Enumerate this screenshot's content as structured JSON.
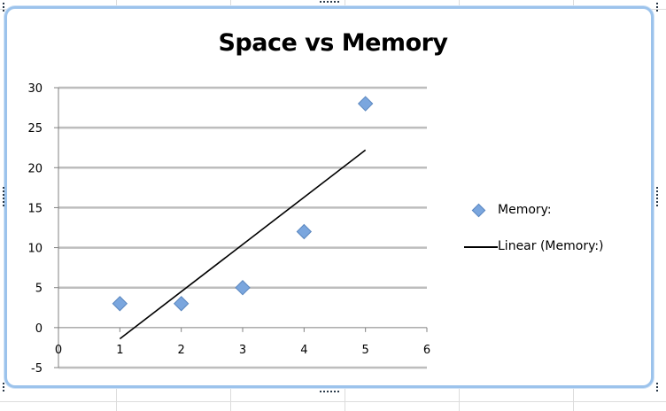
{
  "chart_data": {
    "type": "scatter",
    "title": "Space vs Memory",
    "xlabel": "",
    "ylabel": "",
    "xlim": [
      0,
      6
    ],
    "ylim": [
      -5,
      30
    ],
    "x_ticks": [
      "0",
      "1",
      "2",
      "3",
      "4",
      "5",
      "6"
    ],
    "y_ticks": [
      "30",
      "25",
      "20",
      "15",
      "10",
      "5",
      "0",
      "-5"
    ],
    "grid": true,
    "legend_position": "right",
    "series": [
      {
        "name": "Memory:",
        "color": "#7aa6de",
        "marker": "diamond",
        "x": [
          1,
          2,
          3,
          4,
          5
        ],
        "y": [
          3,
          3,
          5,
          12,
          28
        ]
      }
    ],
    "trendline": {
      "name": "Linear (Memory:)",
      "kind": "linear",
      "color": "#000000",
      "x": [
        1,
        5
      ],
      "y": [
        -1.4,
        22.2
      ]
    }
  }
}
